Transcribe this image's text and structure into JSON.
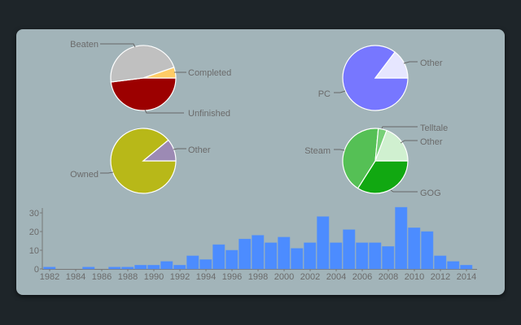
{
  "chart_data": [
    {
      "type": "pie",
      "slices": [
        {
          "label": "Unfinished",
          "value": 48,
          "color": "#9c0000"
        },
        {
          "label": "Beaten",
          "value": 46.7,
          "color": "#c0c0c0"
        },
        {
          "label": "Completed",
          "value": 5.3,
          "color": "#ffcc66"
        }
      ]
    },
    {
      "type": "pie",
      "slices": [
        {
          "label": "PC",
          "value": 85.3,
          "color": "#7777ff"
        },
        {
          "label": "Other",
          "value": 14.7,
          "color": "#e6e6ff"
        }
      ]
    },
    {
      "type": "pie",
      "slices": [
        {
          "label": "Owned",
          "value": 89,
          "color": "#b8b818"
        },
        {
          "label": "Other",
          "value": 11,
          "color": "#9c8ab4"
        }
      ]
    },
    {
      "type": "pie",
      "slices": [
        {
          "label": "GOG",
          "value": 34,
          "color": "#11a811"
        },
        {
          "label": "Steam",
          "value": 42.5,
          "color": "#55c055"
        },
        {
          "label": "Telltale",
          "value": 4.2,
          "color": "#77d077"
        },
        {
          "label": "Other",
          "value": 19.3,
          "color": "#d0f0d0"
        }
      ]
    },
    {
      "type": "bar",
      "categories": [
        1982,
        1983,
        1984,
        1985,
        1986,
        1987,
        1988,
        1989,
        1990,
        1991,
        1992,
        1993,
        1994,
        1995,
        1996,
        1997,
        1998,
        1999,
        2000,
        2001,
        2002,
        2003,
        2004,
        2005,
        2006,
        2007,
        2008,
        2009,
        2010,
        2011,
        2012,
        2013,
        2014
      ],
      "values": [
        1,
        0,
        0,
        1,
        0,
        1,
        1,
        2,
        2,
        4,
        2,
        7,
        5,
        13,
        10,
        16,
        18,
        14,
        17,
        11,
        14,
        28,
        14,
        21,
        14,
        14,
        12,
        33,
        22,
        20,
        7,
        4,
        2
      ],
      "xticks": [
        "1982",
        "1984",
        "1986",
        "1988",
        "1990",
        "1992",
        "1994",
        "1996",
        "1998",
        "2000",
        "2002",
        "2004",
        "2006",
        "2008",
        "2010",
        "2012",
        "2014"
      ],
      "yticks": [
        "0",
        "10",
        "20",
        "30"
      ],
      "ylim": [
        0,
        33
      ],
      "bar_color": "#4c8cff"
    }
  ]
}
